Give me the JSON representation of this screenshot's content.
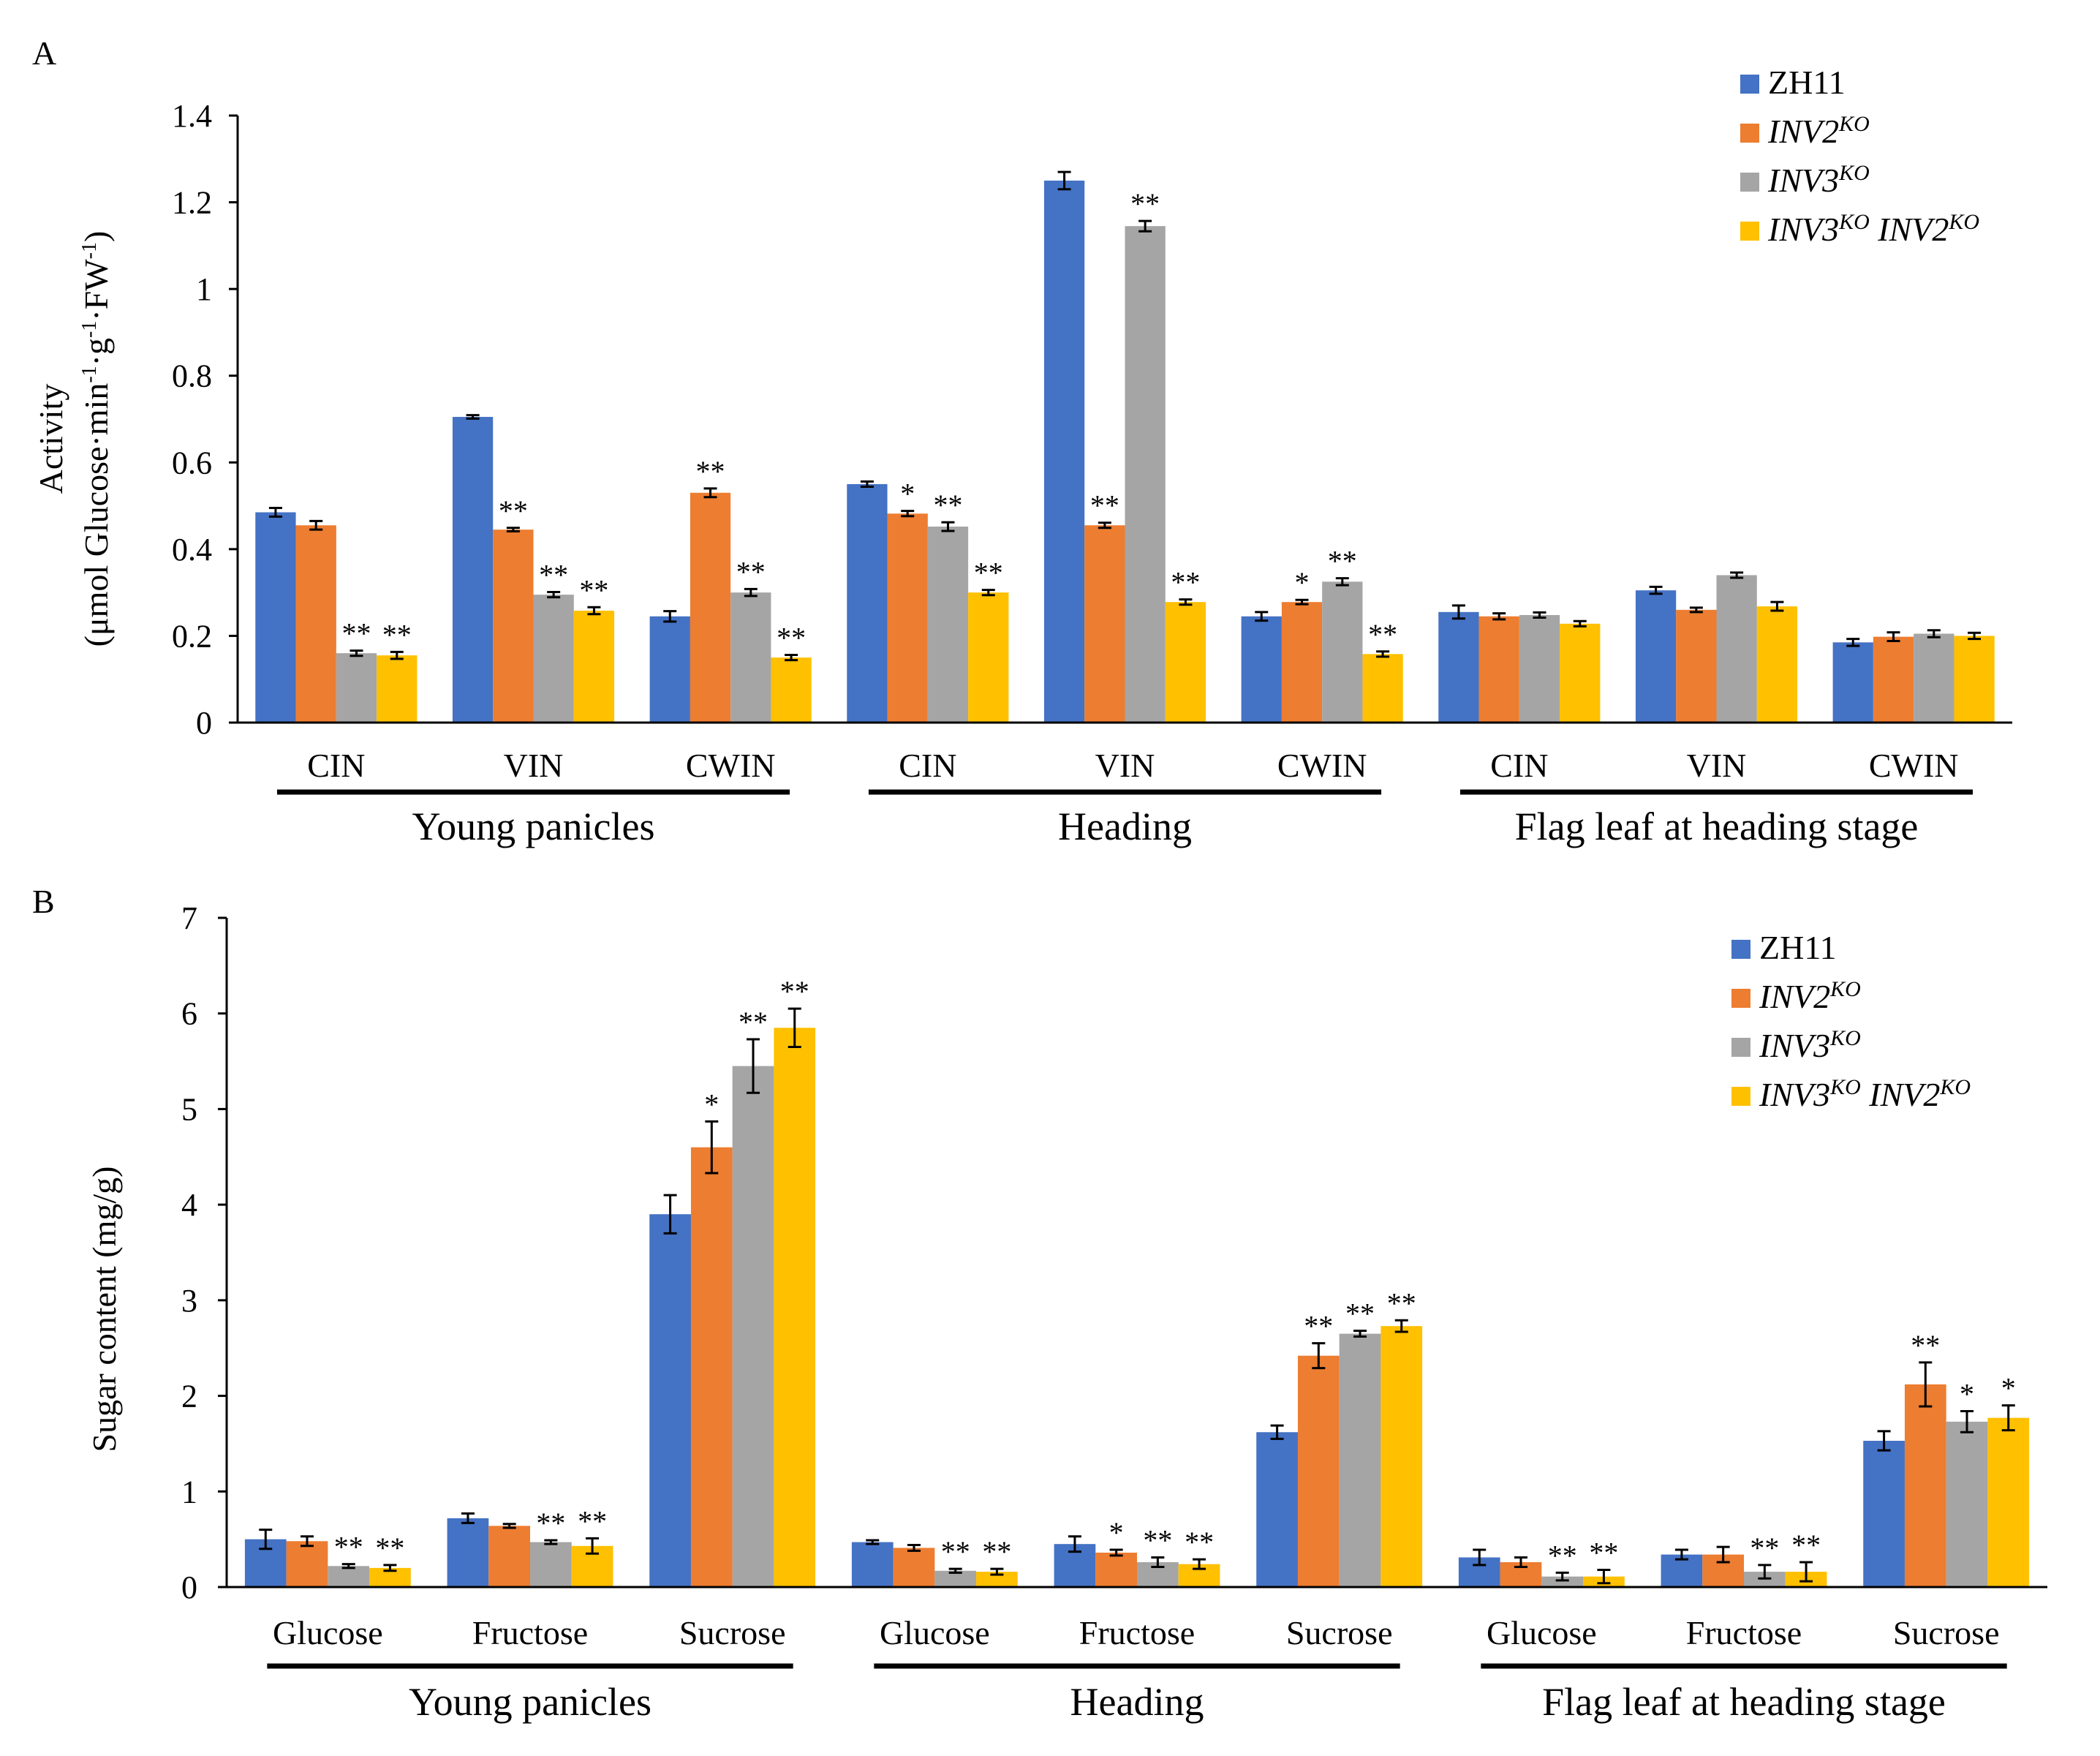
{
  "colors": {
    "ZH11": "#4472C4",
    "INV2KO": "#ED7D31",
    "INV3KO": "#A5A5A5",
    "INV3KO_INV2KO": "#FFC000",
    "axis": "#000000"
  },
  "legend": [
    {
      "key": "ZH11",
      "base": "ZH11",
      "italic": false,
      "sup": ""
    },
    {
      "key": "INV2KO",
      "base": "INV2",
      "italic": true,
      "sup": "KO"
    },
    {
      "key": "INV3KO",
      "base": "INV3",
      "italic": true,
      "sup": "KO"
    },
    {
      "key": "INV3KO_INV2KO",
      "base": "INV3",
      "italic": true,
      "sup": "KO",
      "base2": "INV2",
      "sup2": "KO"
    }
  ],
  "chart_data": [
    {
      "panel": "A",
      "type": "bar",
      "ylabel_line1": "Activity",
      "ylabel_line2_parts": [
        "(μmol Glucose·min",
        "-1",
        "·g",
        "-1",
        "·FW",
        "-1",
        ")"
      ],
      "ylim": [
        0,
        1.4
      ],
      "yticks": [
        "0",
        "0.2",
        "0.4",
        "0.6",
        "0.8",
        "1",
        "1.2",
        "1.4"
      ],
      "ytick_values": [
        0,
        0.2,
        0.4,
        0.6,
        0.8,
        1,
        1.2,
        1.4
      ],
      "groups": [
        "Young panicles",
        "Heading",
        "Flag leaf at heading stage"
      ],
      "categories": [
        "CIN",
        "VIN",
        "CWIN",
        "CIN",
        "VIN",
        "CWIN",
        "CIN",
        "VIN",
        "CWIN"
      ],
      "series_keys": [
        "ZH11",
        "INV2KO",
        "INV3KO",
        "INV3KO_INV2KO"
      ],
      "values": [
        [
          0.485,
          0.455,
          0.16,
          0.155
        ],
        [
          0.705,
          0.445,
          0.295,
          0.258
        ],
        [
          0.245,
          0.53,
          0.3,
          0.15
        ],
        [
          0.55,
          0.482,
          0.452,
          0.3
        ],
        [
          1.25,
          0.455,
          1.145,
          0.278
        ],
        [
          0.245,
          0.278,
          0.325,
          0.158
        ],
        [
          0.255,
          0.245,
          0.248,
          0.228
        ],
        [
          0.305,
          0.26,
          0.34,
          0.268
        ],
        [
          0.185,
          0.198,
          0.205,
          0.2
        ]
      ],
      "errors": [
        [
          0.01,
          0.01,
          0.006,
          0.008
        ],
        [
          0.004,
          0.004,
          0.006,
          0.008
        ],
        [
          0.012,
          0.01,
          0.008,
          0.006
        ],
        [
          0.006,
          0.006,
          0.01,
          0.006
        ],
        [
          0.02,
          0.006,
          0.012,
          0.006
        ],
        [
          0.01,
          0.005,
          0.008,
          0.006
        ],
        [
          0.015,
          0.007,
          0.006,
          0.006
        ],
        [
          0.008,
          0.005,
          0.006,
          0.01
        ],
        [
          0.008,
          0.01,
          0.008,
          0.007
        ]
      ],
      "significance": [
        [
          "",
          "",
          "**",
          "**"
        ],
        [
          "",
          "**",
          "**",
          "**"
        ],
        [
          "",
          "**",
          "**",
          "**"
        ],
        [
          "",
          "*",
          "**",
          "**"
        ],
        [
          "",
          "**",
          "**",
          "**"
        ],
        [
          "",
          "*",
          "**",
          "**"
        ],
        [
          "",
          "",
          "",
          ""
        ],
        [
          "",
          "",
          "",
          ""
        ],
        [
          "",
          "",
          "",
          ""
        ]
      ]
    },
    {
      "panel": "B",
      "type": "bar",
      "ylabel": "Sugar content (mg/g)",
      "ylim": [
        0,
        7
      ],
      "yticks": [
        "0",
        "1",
        "2",
        "3",
        "4",
        "5",
        "6",
        "7"
      ],
      "ytick_values": [
        0,
        1,
        2,
        3,
        4,
        5,
        6,
        7
      ],
      "groups": [
        "Young panicles",
        "Heading",
        "Flag leaf at heading stage"
      ],
      "categories": [
        "Glucose",
        "Fructose",
        "Sucrose",
        "Glucose",
        "Fructose",
        "Sucrose",
        "Glucose",
        "Fructose",
        "Sucrose"
      ],
      "series_keys": [
        "ZH11",
        "INV2KO",
        "INV3KO",
        "INV3KO_INV2KO"
      ],
      "values": [
        [
          0.5,
          0.48,
          0.22,
          0.2
        ],
        [
          0.72,
          0.64,
          0.47,
          0.43
        ],
        [
          3.9,
          4.6,
          5.45,
          5.85
        ],
        [
          0.47,
          0.41,
          0.17,
          0.16
        ],
        [
          0.45,
          0.36,
          0.26,
          0.24
        ],
        [
          1.62,
          2.42,
          2.65,
          2.73
        ],
        [
          0.31,
          0.26,
          0.11,
          0.11
        ],
        [
          0.34,
          0.34,
          0.16,
          0.16
        ],
        [
          1.53,
          2.12,
          1.73,
          1.77
        ]
      ],
      "errors": [
        [
          0.1,
          0.05,
          0.02,
          0.03
        ],
        [
          0.05,
          0.02,
          0.02,
          0.08
        ],
        [
          0.2,
          0.27,
          0.28,
          0.2
        ],
        [
          0.02,
          0.03,
          0.02,
          0.03
        ],
        [
          0.08,
          0.03,
          0.05,
          0.05
        ],
        [
          0.07,
          0.13,
          0.03,
          0.06
        ],
        [
          0.08,
          0.05,
          0.04,
          0.07
        ],
        [
          0.05,
          0.08,
          0.07,
          0.1
        ],
        [
          0.1,
          0.23,
          0.11,
          0.13
        ]
      ],
      "significance": [
        [
          "",
          "",
          "**",
          "**"
        ],
        [
          "",
          "",
          "**",
          "**"
        ],
        [
          "",
          "*",
          "**",
          "**"
        ],
        [
          "",
          "",
          "**",
          "**"
        ],
        [
          "",
          "*",
          "**",
          "**"
        ],
        [
          "",
          "**",
          "**",
          "**"
        ],
        [
          "",
          "",
          "**",
          "**"
        ],
        [
          "",
          "",
          "**",
          "**"
        ],
        [
          "",
          "**",
          "*",
          "*"
        ]
      ]
    }
  ]
}
